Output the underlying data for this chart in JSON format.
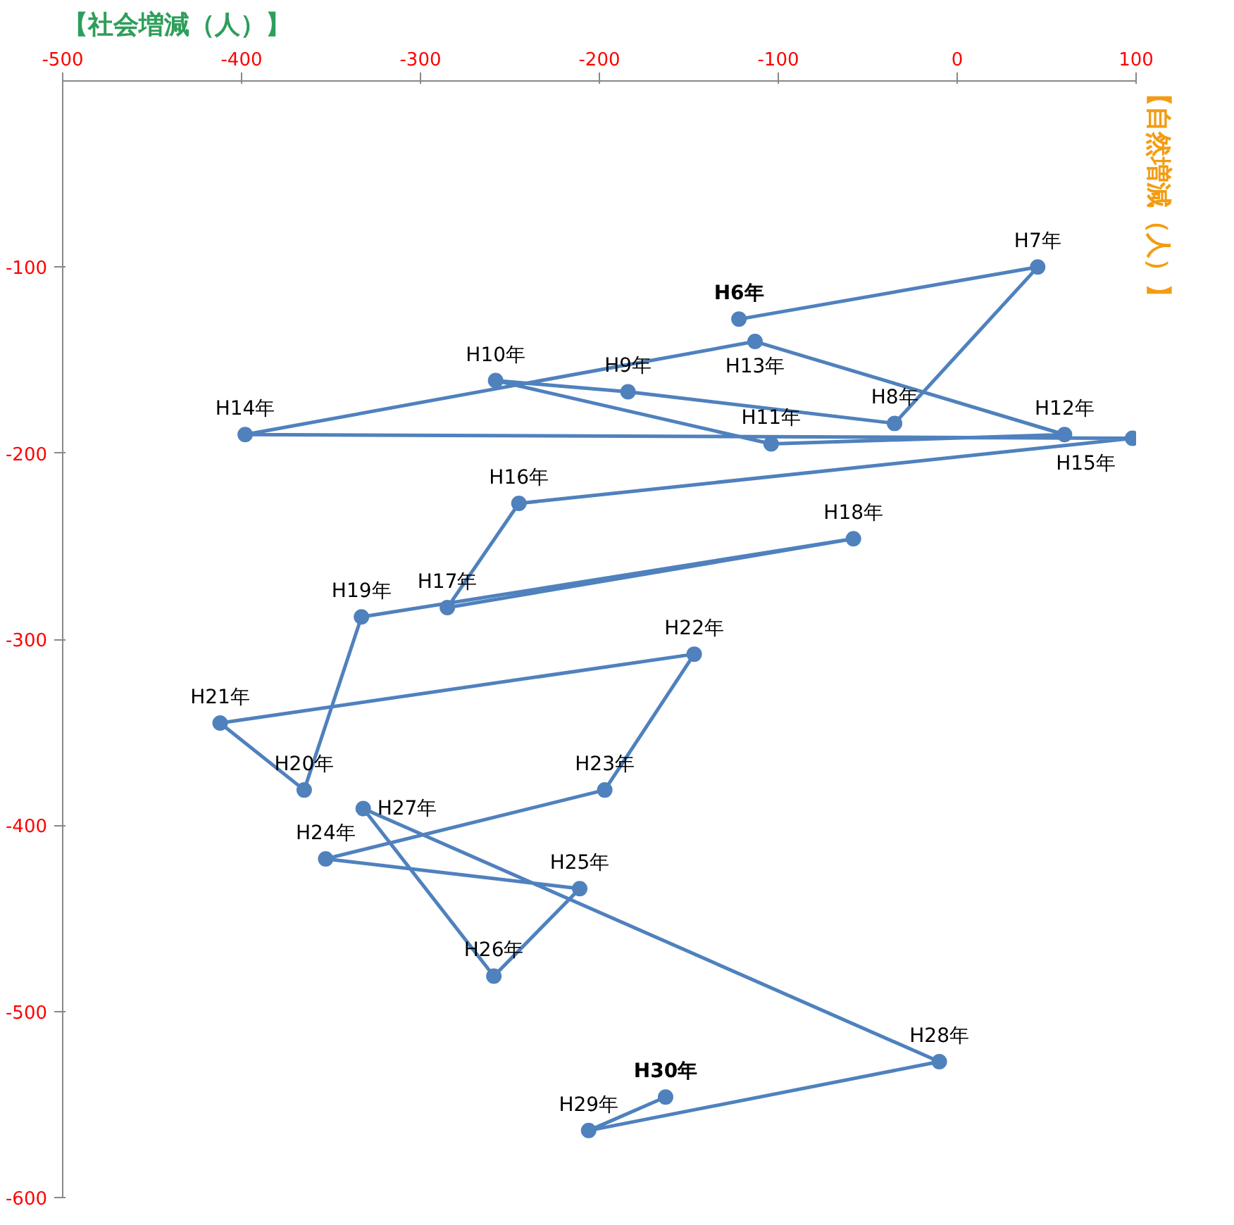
{
  "chart_data": {
    "type": "line",
    "xlabel": "【社会増減（人）】",
    "ylabel": "【自然増減（人）】",
    "xlim": [
      -500,
      100
    ],
    "xticks": [
      -500,
      -400,
      -300,
      -200,
      -100,
      0,
      100
    ],
    "ylim": [
      -600,
      0
    ],
    "yticks": [
      -100,
      -200,
      -300,
      -400,
      -500,
      -600
    ],
    "grid": false,
    "marker": "circle",
    "line_style": "solid",
    "series": [
      {
        "color": "#4f81bd",
        "x": [
          -122,
          45,
          -35,
          -184,
          -258,
          -104,
          60,
          -113,
          -398,
          98,
          -245,
          -285,
          -58,
          -333,
          -365,
          -412,
          -147,
          -197,
          -353,
          -211,
          -259,
          -332,
          -10,
          -206,
          -163
        ],
        "values": [
          -128,
          -100,
          -184,
          -167,
          -161,
          -195,
          -190,
          -140,
          -190,
          -192,
          -227,
          -283,
          -246,
          -288,
          -381,
          -345,
          -308,
          -381,
          -418,
          -434,
          -481,
          -391,
          -527,
          -564,
          -546
        ]
      }
    ],
    "annotations": [
      {
        "text": "H6年",
        "x": -122,
        "y": -128
      },
      {
        "text": "H7年",
        "x": 45,
        "y": -100
      },
      {
        "text": "H8年",
        "x": -35,
        "y": -184
      },
      {
        "text": "H9年",
        "x": -184,
        "y": -167
      },
      {
        "text": "H10年",
        "x": -258,
        "y": -161
      },
      {
        "text": "H11年",
        "x": -104,
        "y": -195
      },
      {
        "text": "H12年",
        "x": 60,
        "y": -190
      },
      {
        "text": "H13年",
        "x": -113,
        "y": -140
      },
      {
        "text": "H14年",
        "x": -398,
        "y": -190
      },
      {
        "text": "H15年",
        "x": 98,
        "y": -192
      },
      {
        "text": "H16年",
        "x": -245,
        "y": -227
      },
      {
        "text": "H17年",
        "x": -285,
        "y": -283
      },
      {
        "text": "H18年",
        "x": -58,
        "y": -246
      },
      {
        "text": "H19年",
        "x": -333,
        "y": -288
      },
      {
        "text": "H20年",
        "x": -365,
        "y": -381
      },
      {
        "text": "H21年",
        "x": -412,
        "y": -345
      },
      {
        "text": "H22年",
        "x": -147,
        "y": -308
      },
      {
        "text": "H23年",
        "x": -197,
        "y": -381
      },
      {
        "text": "H24年",
        "x": -353,
        "y": -418
      },
      {
        "text": "H25年",
        "x": -211,
        "y": -434
      },
      {
        "text": "H26年",
        "x": -259,
        "y": -481
      },
      {
        "text": "H27年",
        "x": -332,
        "y": -391
      },
      {
        "text": "H28年",
        "x": -10,
        "y": -527
      },
      {
        "text": "H29年",
        "x": -206,
        "y": -564
      },
      {
        "text": "H30年",
        "x": -163,
        "y": -546
      }
    ]
  }
}
